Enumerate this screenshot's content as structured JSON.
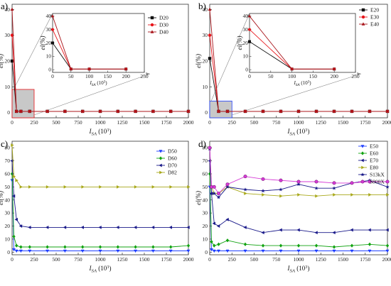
{
  "colors": {
    "black": "#111111",
    "red": "#e8141a",
    "darkred": "#a8141a",
    "blue": "#1f3fff",
    "green": "#11a311",
    "navy": "#1a1a8a",
    "olive": "#a8a81a",
    "magenta": "#d63ad6"
  },
  "chart_data": [
    {
      "panel_label": "a)",
      "type": "scatter",
      "xlabel_main": "I",
      "xlabel_sub": "SA",
      "xlabel_unit": "(10",
      "xlabel_exp": "3",
      "xlabel_close": ")",
      "ylabel": "el(%)",
      "xlim": [
        0,
        2000
      ],
      "ylim": [
        -2,
        42
      ],
      "xticks": [
        "0",
        "250",
        "500",
        "750",
        "1000",
        "1250",
        "1500",
        "1750",
        "2000"
      ],
      "yticks": [
        "0",
        "10",
        "20",
        "30",
        "40"
      ],
      "series": [
        {
          "name": "D20",
          "marker": "square",
          "color": "black",
          "x": [
            0,
            50,
            100,
            200,
            400,
            600,
            800,
            1000,
            1200,
            1400,
            1600,
            1800,
            2000
          ],
          "y": [
            20,
            0.5,
            0.5,
            0.5,
            0.5,
            0.5,
            0.5,
            0.5,
            0.5,
            0.5,
            0.5,
            0.5,
            0.5
          ]
        },
        {
          "name": "D30",
          "marker": "circle",
          "color": "red",
          "x": [
            0,
            50,
            100,
            200,
            400,
            600,
            800,
            1000,
            1200,
            1400,
            1600,
            1800,
            2000
          ],
          "y": [
            30,
            0.5,
            0.5,
            0.5,
            0.5,
            0.5,
            0.5,
            0.5,
            0.5,
            0.5,
            0.5,
            0.5,
            0.5
          ]
        },
        {
          "name": "D40",
          "marker": "triangle-up",
          "color": "darkred",
          "x": [
            0,
            50,
            100,
            200,
            400,
            600,
            800,
            1000,
            1200,
            1400,
            1600,
            1800,
            2000
          ],
          "y": [
            40,
            0.5,
            0.5,
            0.5,
            0.5,
            0.5,
            0.5,
            0.5,
            0.5,
            0.5,
            0.5,
            0.5,
            0.5
          ]
        }
      ],
      "legend_placement": "top-right",
      "inset": {
        "xlim": [
          0,
          250
        ],
        "ylim": [
          -2,
          42
        ],
        "xticks": [
          "0",
          "50",
          "100",
          "150",
          "200",
          "250"
        ],
        "yticks": [
          "0",
          "10",
          "20",
          "30",
          "40"
        ],
        "ylabel": "el(%)",
        "xlabel_main": "I",
        "xlabel_sub": "SA",
        "xlabel_unit": "(10",
        "xlabel_exp": "3",
        "xlabel_close": ")"
      }
    },
    {
      "panel_label": "b)",
      "type": "scatter",
      "xlabel_main": "I",
      "xlabel_sub": "SA",
      "xlabel_unit": "(10",
      "xlabel_exp": "3",
      "xlabel_close": ")",
      "ylabel": "el(%)",
      "xlim": [
        0,
        2000
      ],
      "ylim": [
        -2,
        42
      ],
      "xticks": [
        "0",
        "250",
        "500",
        "750",
        "1000",
        "1250",
        "1500",
        "1750",
        "2000"
      ],
      "yticks": [
        "0",
        "10",
        "20",
        "30",
        "40"
      ],
      "series": [
        {
          "name": "E20",
          "marker": "square",
          "color": "black",
          "x": [
            0,
            100,
            200,
            400,
            600,
            800,
            1000,
            1200,
            1400,
            1600,
            1800,
            2000
          ],
          "y": [
            21,
            0.5,
            0.5,
            0.5,
            0.5,
            0.5,
            0.5,
            0.5,
            0.5,
            0.5,
            0.5,
            0.5
          ]
        },
        {
          "name": "E30",
          "marker": "circle",
          "color": "red",
          "x": [
            0,
            100,
            200,
            400,
            600,
            800,
            1000,
            1200,
            1400,
            1600,
            1800,
            2000
          ],
          "y": [
            30,
            0.5,
            0.5,
            0.5,
            0.5,
            0.5,
            0.5,
            0.5,
            0.5,
            0.5,
            0.5,
            0.5
          ]
        },
        {
          "name": "E40",
          "marker": "triangle-up",
          "color": "darkred",
          "x": [
            0,
            100,
            200,
            400,
            600,
            800,
            1000,
            1200,
            1400,
            1600,
            1800,
            2000
          ],
          "y": [
            40,
            0.5,
            0.5,
            0.5,
            0.5,
            0.5,
            0.5,
            0.5,
            0.5,
            0.5,
            0.5,
            0.5
          ]
        }
      ],
      "legend_placement": "top-right",
      "inset": {
        "xlim": [
          0,
          250
        ],
        "ylim": [
          -2,
          42
        ],
        "xticks": [
          "0",
          "50",
          "100",
          "150",
          "200",
          "250"
        ],
        "yticks": [
          "0",
          "10",
          "20",
          "30",
          "40"
        ],
        "ylabel": "el(%)",
        "xlabel_main": "I",
        "xlabel_sub": "SA",
        "xlabel_unit": "(10",
        "xlabel_exp": "3",
        "xlabel_close": ")"
      }
    },
    {
      "panel_label": "c)",
      "type": "scatter",
      "xlabel_main": "I",
      "xlabel_sub": "SA",
      "xlabel_unit": "(10",
      "xlabel_exp": "3",
      "xlabel_close": ")",
      "ylabel": "el(%)",
      "xlim": [
        0,
        2000
      ],
      "ylim": [
        -2,
        85
      ],
      "xticks": [
        "0",
        "250",
        "500",
        "750",
        "1000",
        "1250",
        "1500",
        "1750",
        "2000"
      ],
      "yticks": [
        "0",
        "10",
        "20",
        "30",
        "40",
        "50",
        "60",
        "70",
        "80"
      ],
      "series": [
        {
          "name": "D50",
          "marker": "triangle-down",
          "color": "blue",
          "x": [
            0,
            20,
            50,
            100,
            200,
            400,
            600,
            800,
            1000,
            1200,
            1400,
            1600,
            1800,
            2000
          ],
          "y": [
            55,
            2,
            1,
            1,
            1,
            1,
            1,
            1,
            1,
            1,
            1,
            1,
            1,
            1
          ]
        },
        {
          "name": "D60",
          "marker": "diamond",
          "color": "green",
          "x": [
            0,
            20,
            50,
            100,
            200,
            400,
            600,
            800,
            1000,
            1200,
            1400,
            1600,
            1800,
            2000
          ],
          "y": [
            60,
            12,
            5,
            4,
            4,
            4,
            4,
            4,
            4,
            4,
            4,
            4,
            4,
            5
          ]
        },
        {
          "name": "D70",
          "marker": "triangle-left",
          "color": "navy",
          "x": [
            0,
            20,
            50,
            100,
            200,
            400,
            600,
            800,
            1000,
            1200,
            1400,
            1600,
            1800,
            2000
          ],
          "y": [
            70,
            43,
            25,
            20,
            19,
            19,
            19,
            19,
            19,
            19,
            19,
            19,
            19,
            19
          ]
        },
        {
          "name": "D82",
          "marker": "triangle-right",
          "color": "olive",
          "x": [
            0,
            20,
            50,
            100,
            200,
            400,
            600,
            800,
            1000,
            1200,
            1400,
            1600,
            1800,
            2000
          ],
          "y": [
            82,
            58,
            55,
            50,
            50,
            50,
            50,
            50,
            50,
            50,
            50,
            50,
            50,
            50
          ]
        }
      ],
      "legend_placement": "top-right"
    },
    {
      "panel_label": "d)",
      "type": "scatter",
      "xlabel_main": "I",
      "xlabel_sub": "SA",
      "xlabel_unit": "(10",
      "xlabel_exp": "3",
      "xlabel_close": ")",
      "ylabel": "el(%)",
      "xlim": [
        0,
        2000
      ],
      "ylim": [
        -2,
        85
      ],
      "xticks": [
        "0",
        "250",
        "500",
        "750",
        "1000",
        "1250",
        "1500",
        "1750",
        "2000"
      ],
      "yticks": [
        "0",
        "10",
        "20",
        "30",
        "40",
        "50",
        "60",
        "70",
        "80"
      ],
      "series": [
        {
          "name": "E50",
          "marker": "triangle-down",
          "color": "blue",
          "x": [
            0,
            20,
            50,
            100,
            200,
            400,
            600,
            800,
            1000,
            1200,
            1400,
            1600,
            1800,
            2000
          ],
          "y": [
            50,
            2,
            1,
            1,
            1,
            1,
            1,
            1,
            1,
            1,
            1,
            1,
            1,
            1
          ]
        },
        {
          "name": "E60",
          "marker": "diamond",
          "color": "green",
          "x": [
            0,
            20,
            50,
            100,
            200,
            400,
            600,
            800,
            1000,
            1200,
            1400,
            1600,
            1800,
            2000
          ],
          "y": [
            60,
            8,
            5,
            6,
            9,
            6,
            5,
            5,
            5,
            5,
            4,
            5,
            6,
            5
          ]
        },
        {
          "name": "E70",
          "marker": "triangle-left",
          "color": "navy",
          "x": [
            0,
            20,
            50,
            100,
            200,
            400,
            600,
            800,
            1000,
            1200,
            1400,
            1600,
            1800,
            2000
          ],
          "y": [
            70,
            45,
            22,
            20,
            25,
            19,
            15,
            17,
            17,
            15,
            15,
            17,
            17,
            17
          ]
        },
        {
          "name": "E80",
          "marker": "triangle-right",
          "color": "olive",
          "x": [
            0,
            20,
            50,
            100,
            200,
            400,
            600,
            800,
            1000,
            1200,
            1400,
            1600,
            1800,
            2000
          ],
          "y": [
            80,
            50,
            45,
            45,
            50,
            45,
            44,
            43,
            44,
            43,
            44,
            44,
            44,
            44
          ]
        },
        {
          "name": "S13kX",
          "marker": "star",
          "color": "navy",
          "x": [
            0,
            20,
            50,
            100,
            200,
            400,
            600,
            800,
            1000,
            1200,
            1400,
            1600,
            1800,
            2000
          ],
          "y": [
            79,
            45,
            45,
            42,
            50,
            48,
            47,
            48,
            52,
            49,
            49,
            53,
            55,
            50
          ]
        },
        {
          "name": "S800X",
          "marker": "circle",
          "color": "magenta",
          "x": [
            0,
            20,
            50,
            100,
            200,
            400,
            600,
            800,
            1000,
            1200,
            1400,
            1600,
            1800,
            2000
          ],
          "y": [
            80,
            50,
            50,
            45,
            52,
            58,
            56,
            55,
            54,
            54,
            53,
            53,
            54,
            54
          ]
        }
      ],
      "legend_placement": "top-right"
    }
  ]
}
